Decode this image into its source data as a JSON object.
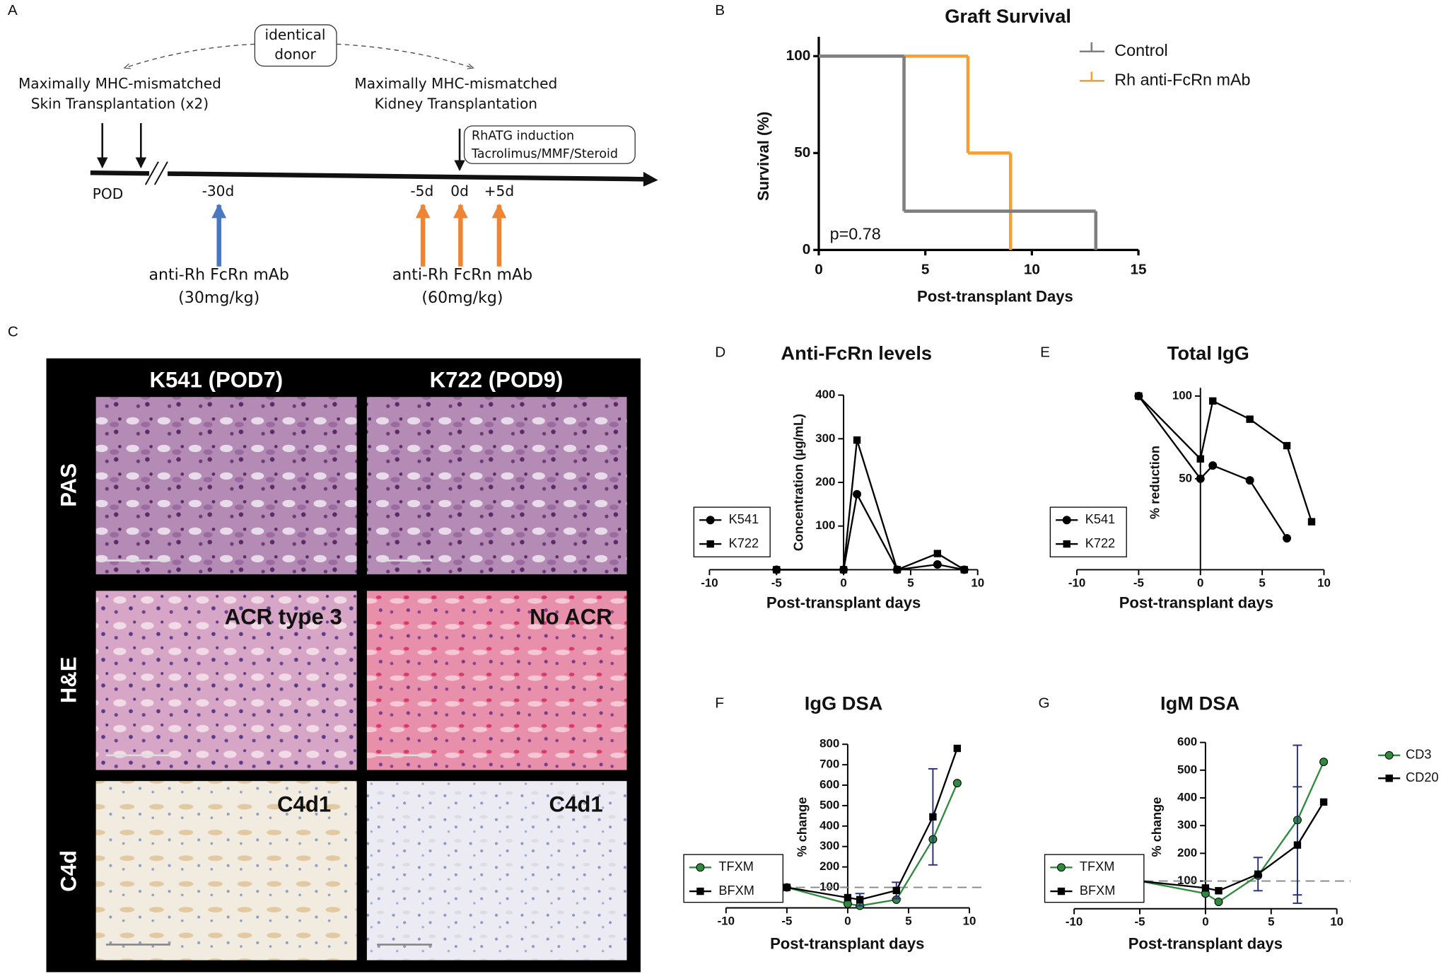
{
  "panel_labels": [
    "A",
    "B",
    "C",
    "D",
    "E",
    "F",
    "G"
  ],
  "schematic": {
    "donor": [
      "identical",
      "donor"
    ],
    "skin": [
      "Maximally MHC-mismatched",
      "Skin Transplantation (x2)"
    ],
    "kidney": [
      "Maximally MHC-mismatched",
      "Kidney Transplantation"
    ],
    "regimen": [
      "RhATG induction",
      "Tacrolimus/MMF/Steroid"
    ],
    "timepoints": [
      "POD",
      "-30d",
      "-5d",
      "0d",
      "+5d"
    ],
    "dose1": [
      "anti-Rh FcRn mAb",
      "(30mg/kg)"
    ],
    "dose2": [
      "anti-Rh FcRn mAb",
      "(60mg/kg)"
    ]
  },
  "histology": {
    "columns": [
      "K541 (POD7)",
      "K722 (POD9)"
    ],
    "rows": [
      "PAS",
      "H&E",
      "C4d"
    ],
    "he_annotations": [
      "ACR type 3",
      "No ACR"
    ],
    "c4d_annotations": [
      "C4d1",
      "C4d1"
    ]
  },
  "chart_data": [
    {
      "type": "step",
      "title": "Graft Survival",
      "x_label": "Post-transplant Days",
      "y_label": "Survival (%)",
      "xlim": [
        0,
        15
      ],
      "xticks": [
        0,
        5,
        10,
        15
      ],
      "ylim": [
        0,
        110
      ],
      "yticks": [
        0,
        50,
        100
      ],
      "annotation": "p=0.78",
      "series": [
        {
          "name": "Control",
          "color": "#7f7f7f",
          "x": [
            0,
            4,
            13
          ],
          "values": [
            100,
            20,
            0
          ]
        },
        {
          "name": "Rh anti-FcRn mAb",
          "color": "#f4a132",
          "x": [
            0,
            7,
            9
          ],
          "values": [
            100,
            50,
            0
          ]
        }
      ]
    },
    {
      "type": "line",
      "title": "Anti-FcRn levels",
      "x_label": "Post-transplant days",
      "y_label": "Concentration (µg/mL)",
      "xlim": [
        -10,
        10
      ],
      "xticks": [
        -10,
        -5,
        0,
        5,
        10
      ],
      "ylim": [
        0,
        400
      ],
      "yticks": [
        100,
        200,
        300,
        400
      ],
      "x": [
        -5,
        0,
        1,
        4,
        7,
        9
      ],
      "series": [
        {
          "name": "K541",
          "color": "#000000",
          "marker": "circle",
          "values": [
            0,
            0,
            173,
            0,
            12,
            0
          ]
        },
        {
          "name": "K722",
          "color": "#000000",
          "marker": "square",
          "values": [
            0,
            0,
            297,
            0,
            37,
            0
          ]
        }
      ]
    },
    {
      "type": "line",
      "title": "Total IgG",
      "x_label": "Post-transplant days",
      "y_label": "% reduction",
      "xlim": [
        -10,
        10
      ],
      "xticks": [
        -10,
        -5,
        0,
        5,
        10
      ],
      "ylim": [
        -5,
        105
      ],
      "yticks": [
        50,
        100
      ],
      "x": [
        -5,
        0,
        1,
        4,
        7,
        9
      ],
      "series": [
        {
          "name": "K541",
          "color": "#000000",
          "marker": "circle",
          "values": [
            100,
            50,
            58,
            49,
            14,
            null
          ]
        },
        {
          "name": "K722",
          "color": "#000000",
          "marker": "square",
          "values": [
            100,
            62,
            97,
            86,
            70,
            24
          ]
        }
      ]
    },
    {
      "type": "line",
      "title": "IgG DSA",
      "x_label": "Post-transplant days",
      "y_label": "% change",
      "xlim": [
        -10,
        10
      ],
      "xticks": [
        -10,
        -5,
        0,
        5,
        10
      ],
      "ylim": [
        0,
        800
      ],
      "yticks": [
        100,
        200,
        300,
        400,
        500,
        600,
        700,
        800
      ],
      "reference_line": 100,
      "error_color": "#2b2f80",
      "x": [
        -5,
        0,
        1,
        4,
        7,
        9
      ],
      "series": [
        {
          "name": "TFXM",
          "color": "#2e8b3e",
          "marker": "circle",
          "values": [
            100,
            20,
            10,
            40,
            335,
            610
          ]
        },
        {
          "name": "BFXM",
          "color": "#000000",
          "marker": "square",
          "values": [
            100,
            50,
            40,
            85,
            445,
            780
          ],
          "errors": [
            null,
            null,
            30,
            40,
            235,
            null
          ]
        }
      ]
    },
    {
      "type": "line",
      "title": "IgM DSA",
      "x_label": "Post-transplant days",
      "y_label": "% change",
      "xlim": [
        -10,
        10
      ],
      "xticks": [
        -10,
        -5,
        0,
        5,
        10
      ],
      "ylim": [
        0,
        600
      ],
      "yticks": [
        100,
        200,
        300,
        400,
        500,
        600
      ],
      "reference_line": 100,
      "error_color": "#2b2f80",
      "x": [
        -5,
        0,
        1,
        4,
        7,
        9
      ],
      "series": [
        {
          "name": "TFXM",
          "color": "#2e8b3e",
          "marker": "circle",
          "values": [
            100,
            55,
            25,
            120,
            320,
            530
          ],
          "errors": [
            null,
            null,
            null,
            null,
            270,
            null
          ]
        },
        {
          "name": "BFXM",
          "color": "#000000",
          "marker": "square",
          "values": [
            100,
            75,
            65,
            125,
            230,
            385
          ],
          "errors": [
            null,
            null,
            null,
            60,
            210,
            null
          ]
        }
      ],
      "legend2": [
        {
          "name": "CD3",
          "color": "#2e8b3e",
          "marker": "circle"
        },
        {
          "name": "CD20",
          "color": "#000000",
          "marker": "square"
        }
      ]
    }
  ]
}
